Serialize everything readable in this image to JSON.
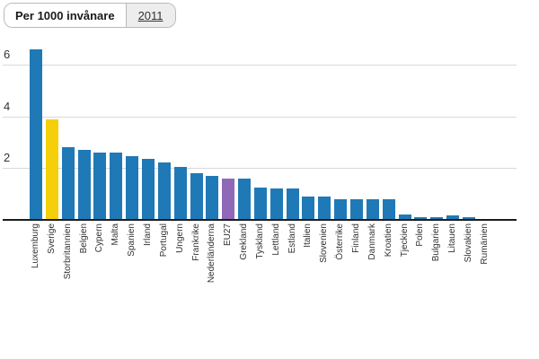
{
  "header": {
    "metric_tab_label": "Per 1000 invånare",
    "year_tab_label": "2011"
  },
  "chart_data": {
    "type": "bar",
    "title": "Per 1000 invånare",
    "subtitle": "2011",
    "xlabel": "",
    "ylabel": "Per 1000 invånare",
    "categories": [
      "Luxemburg",
      "Sverige",
      "Storbritannien",
      "Belgien",
      "Cypern",
      "Malta",
      "Spanien",
      "Irland",
      "Portugal",
      "Ungern",
      "Frankrike",
      "Nederländerna",
      "EU27",
      "Grekland",
      "Tyskland",
      "Lettland",
      "Estland",
      "Italien",
      "Slovenien",
      "Österrike",
      "Finland",
      "Danmark",
      "Kroatien",
      "Tjeckien",
      "Polen",
      "Bulgarien",
      "Litauen",
      "Slovakien",
      "Rumänien"
    ],
    "values": [
      6.6,
      3.9,
      2.8,
      2.7,
      2.6,
      2.6,
      2.45,
      2.35,
      2.2,
      2.05,
      1.8,
      1.7,
      1.6,
      1.6,
      1.25,
      1.2,
      1.2,
      0.9,
      0.9,
      0.8,
      0.8,
      0.8,
      0.8,
      0.2,
      0.1,
      0.1,
      0.15,
      0.1,
      0
    ],
    "yticks": [
      2,
      4,
      6
    ],
    "ylim": [
      0,
      7
    ],
    "grid": true,
    "legend": false,
    "default_bar_color": "#2079b7",
    "highlights": {
      "Sverige": "#f5d00a",
      "EU27": "#9068b8"
    }
  },
  "colors": {
    "grid": "#d9d9d9",
    "axis": "#1c1c1c",
    "tick_label": "#333333",
    "category_label": "#333333",
    "tab_border": "#b9b9b9",
    "tab_active_bg": "#ffffff",
    "tab_inactive_bg": "#ededed"
  }
}
